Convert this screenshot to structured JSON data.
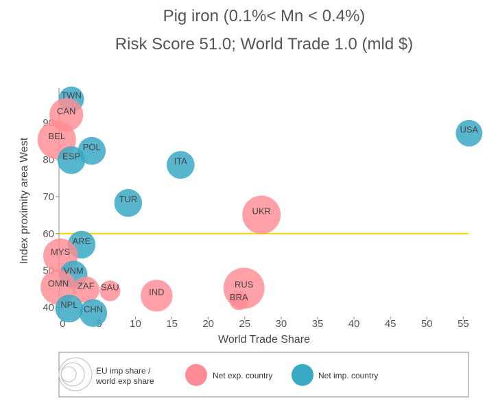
{
  "chart_data": {
    "type": "scatter",
    "title": "Pig iron (0.1%< Mn < 0.4%)",
    "subtitle": "Risk Score 51.0; World Trade 1.0 (mld $)",
    "xlabel": "World Trade Share",
    "ylabel": "Index proximity area West",
    "xlim": [
      -0.5,
      56
    ],
    "ylim": [
      37.5,
      99.5
    ],
    "xticks": [
      "0",
      "5",
      "10",
      "15",
      "20",
      "25",
      "30",
      "35",
      "40",
      "45",
      "50",
      "55"
    ],
    "yticks": [
      "40",
      "50",
      "60",
      "70",
      "80",
      "90"
    ],
    "reference_line": {
      "y": 60,
      "color": "#f2d600"
    },
    "colors": {
      "net_exp": "#ff8c94",
      "net_imp": "#3aa9c4"
    },
    "legend": {
      "size_label_line1": "EU imp share /",
      "size_label_line2": "world exp share",
      "exp_label": "Net exp. country",
      "imp_label": "Net imp. country"
    },
    "points": [
      {
        "label": "TWN",
        "x": 1.2,
        "y": 96.4,
        "group": "imp",
        "size": 0.3
      },
      {
        "label": "CAN",
        "x": 0.5,
        "y": 92.2,
        "group": "exp",
        "size": 0.7
      },
      {
        "label": "BEL",
        "x": -0.8,
        "y": 85.4,
        "group": "exp",
        "size": 1.0
      },
      {
        "label": "POL",
        "x": 4.0,
        "y": 82.4,
        "group": "imp",
        "size": 0.4
      },
      {
        "label": "ESP",
        "x": 1.2,
        "y": 79.9,
        "group": "imp",
        "size": 0.4
      },
      {
        "label": "ITA",
        "x": 16.2,
        "y": 78.6,
        "group": "imp",
        "size": 0.4
      },
      {
        "label": "USA",
        "x": 55.8,
        "y": 87.2,
        "group": "imp",
        "size": 0.35
      },
      {
        "label": "TUR",
        "x": 9.0,
        "y": 68.3,
        "group": "imp",
        "size": 0.4
      },
      {
        "label": "UKR",
        "x": 27.3,
        "y": 65.1,
        "group": "exp",
        "size": 1.0
      },
      {
        "label": "ARE",
        "x": 2.6,
        "y": 57.0,
        "group": "imp",
        "size": 0.4
      },
      {
        "label": "MYS",
        "x": -0.3,
        "y": 54.0,
        "group": "exp",
        "size": 0.75
      },
      {
        "label": "VNM",
        "x": 1.5,
        "y": 48.9,
        "group": "imp",
        "size": 0.4
      },
      {
        "label": "OMN",
        "x": -0.6,
        "y": 45.5,
        "group": "exp",
        "size": 0.8
      },
      {
        "label": "ZAF",
        "x": 3.2,
        "y": 44.8,
        "group": "exp",
        "size": 0.35
      },
      {
        "label": "SAU",
        "x": 6.5,
        "y": 44.5,
        "group": "exp",
        "size": 0.15
      },
      {
        "label": "IND",
        "x": 12.9,
        "y": 43.2,
        "group": "exp",
        "size": 0.6
      },
      {
        "label": "RUS",
        "x": 24.9,
        "y": 45.2,
        "group": "exp",
        "size": 1.2
      },
      {
        "label": "BRA",
        "x": 24.2,
        "y": 41.8,
        "group": "exp",
        "size": 0.1
      },
      {
        "label": "NPL",
        "x": 0.9,
        "y": 39.7,
        "group": "imp",
        "size": 0.4
      },
      {
        "label": "CHN",
        "x": 4.2,
        "y": 38.5,
        "group": "imp",
        "size": 0.4
      }
    ]
  }
}
